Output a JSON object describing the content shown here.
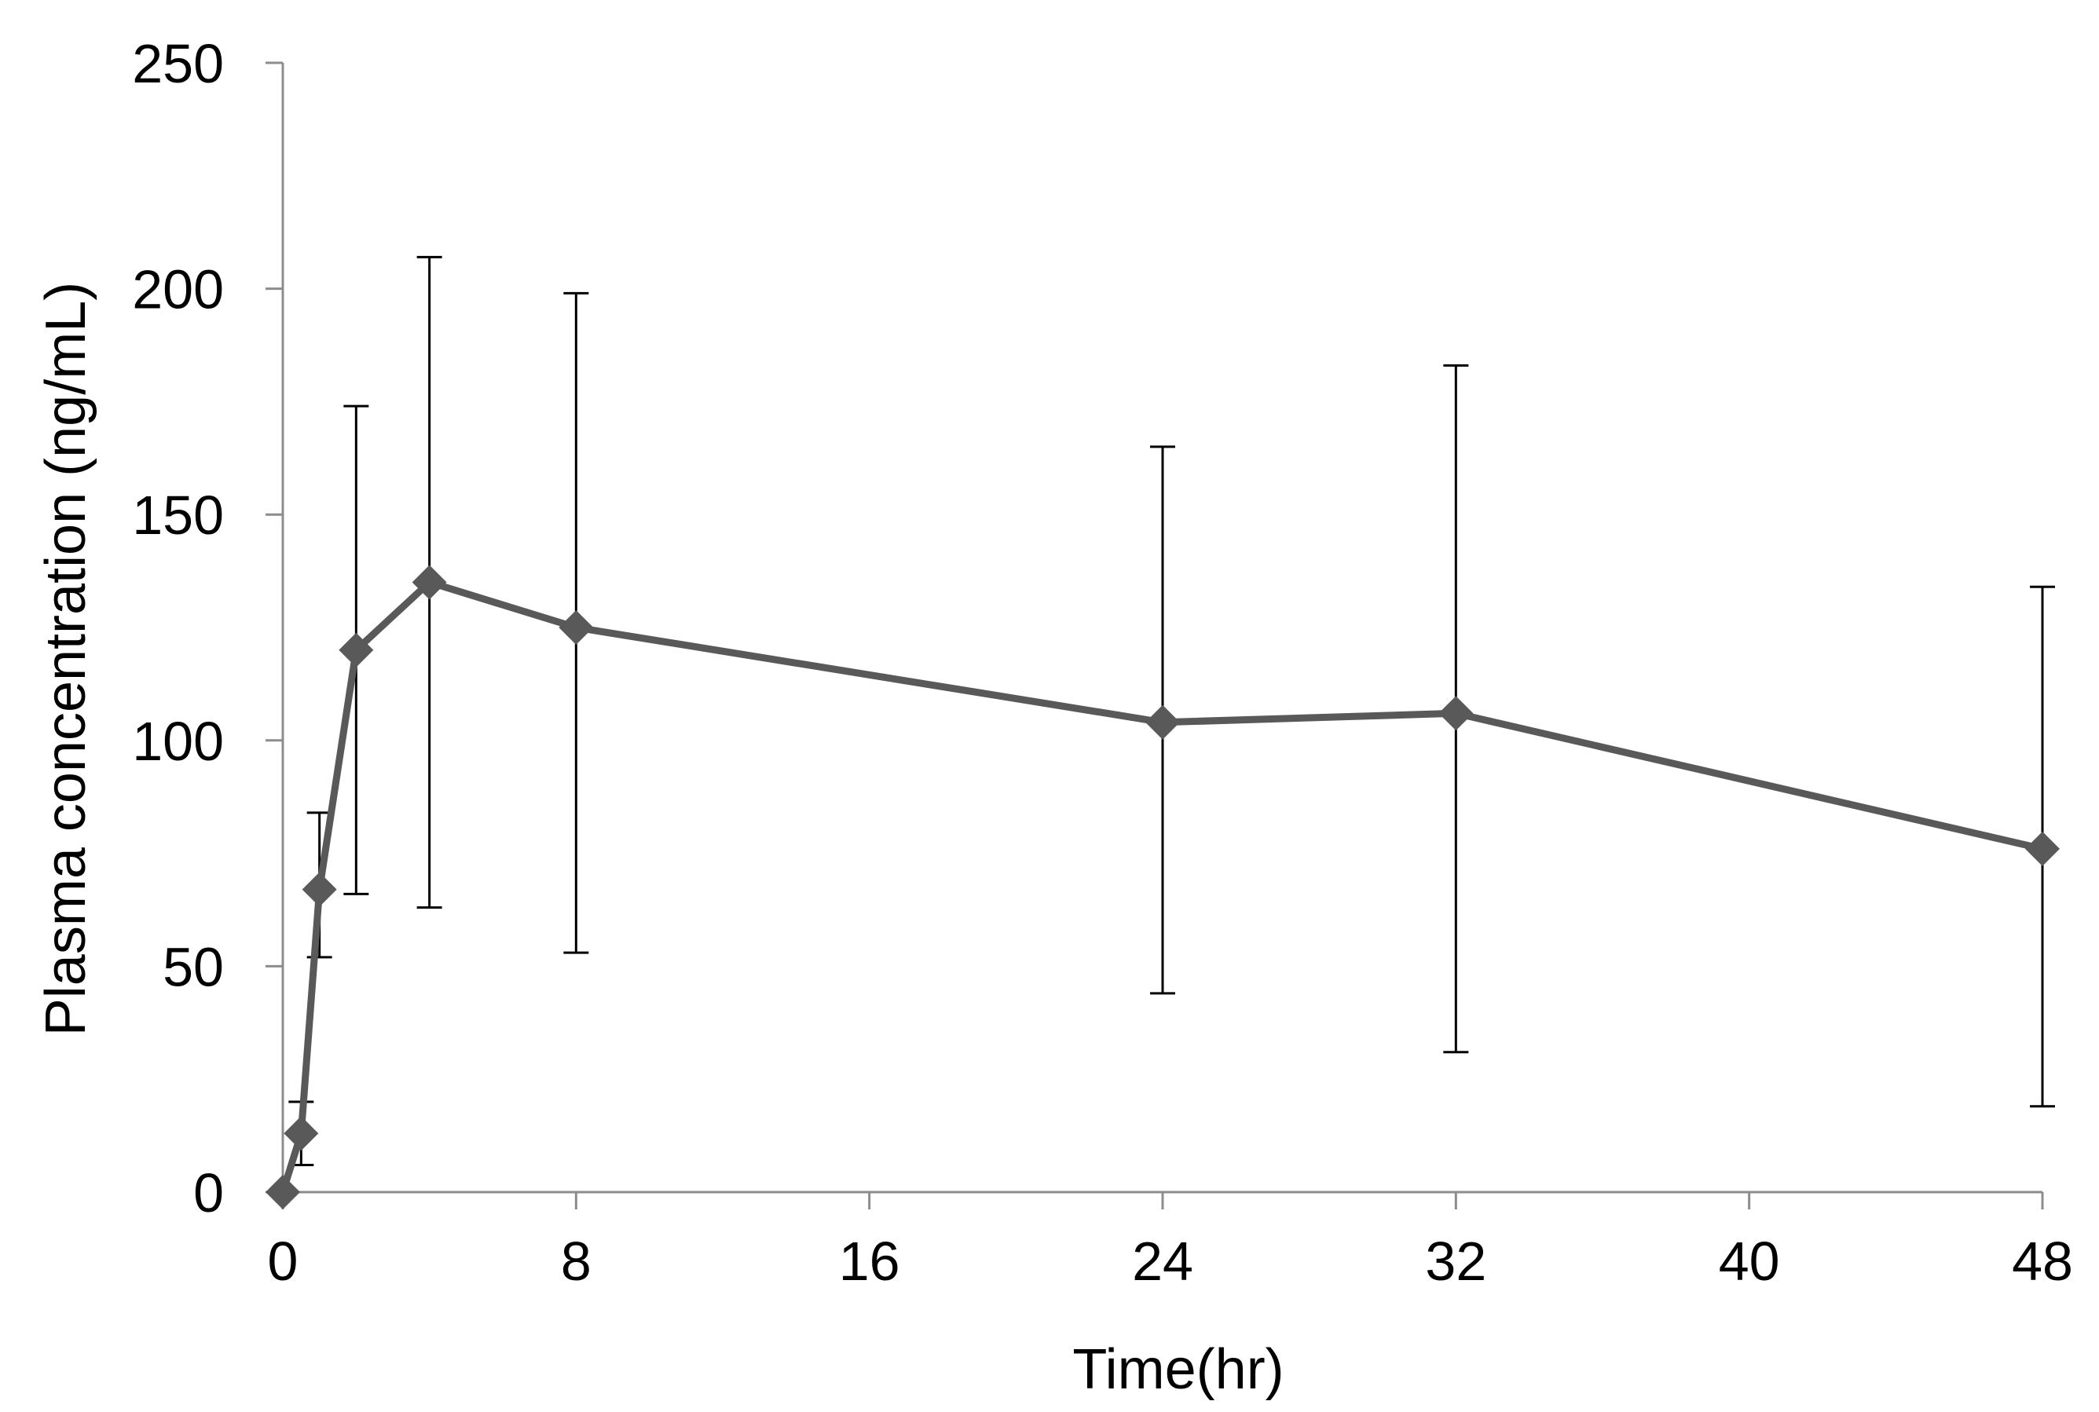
{
  "chart_data": {
    "type": "line",
    "title": "",
    "xlabel": "Time(hr)",
    "ylabel": "Plasma concentration (ng/mL)",
    "xlim": [
      0,
      48
    ],
    "ylim": [
      0,
      250
    ],
    "xticks": [
      0,
      8,
      16,
      24,
      32,
      40,
      48
    ],
    "yticks": [
      0,
      50,
      100,
      150,
      200,
      250
    ],
    "grid": false,
    "legend": "none",
    "colors": {
      "series": "#595959",
      "axis": "#8c8c8c",
      "error_bar": "#000000"
    },
    "series": [
      {
        "name": "Plasma concentration",
        "marker": "diamond",
        "x": [
          0,
          0.5,
          1,
          2,
          4,
          8,
          24,
          32,
          48
        ],
        "y": [
          0,
          13,
          67,
          120,
          135,
          125,
          104,
          106,
          76
        ],
        "error_upper": [
          0,
          20,
          84,
          174,
          207,
          199,
          165,
          183,
          134
        ],
        "error_lower": [
          0,
          6,
          52,
          66,
          63,
          53,
          44,
          31,
          19
        ]
      }
    ]
  }
}
